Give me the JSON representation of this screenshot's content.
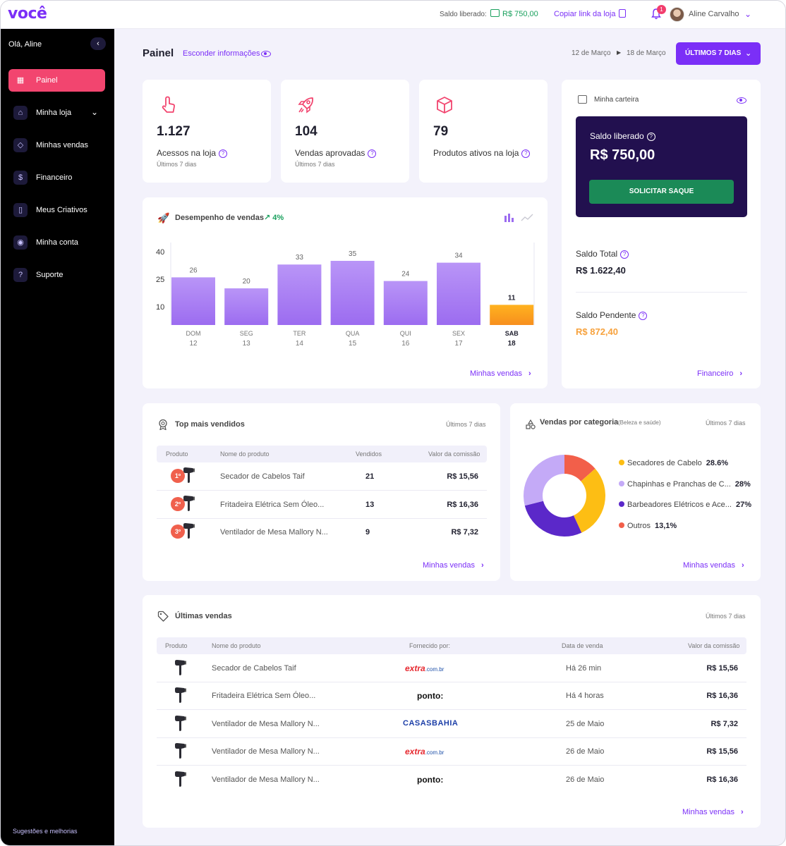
{
  "topbar": {
    "logo": "você",
    "saldo_label": "Saldo liberado:",
    "saldo_value": "R$ 750,00",
    "copy_link": "Copiar link da loja",
    "notification_count": "1",
    "user_name": "Aline Carvalho"
  },
  "sidebar": {
    "greeting": "Olá, Aline",
    "items": [
      {
        "label": "Painel",
        "icon": "dashboard-icon",
        "glyph": "▦",
        "active": true
      },
      {
        "label": "Minha loja",
        "icon": "store-icon",
        "glyph": "⌂",
        "active": false
      },
      {
        "label": "Minhas vendas",
        "icon": "tag-icon",
        "glyph": "◇",
        "active": false
      },
      {
        "label": "Financeiro",
        "icon": "dollar-icon",
        "glyph": "$",
        "active": false
      },
      {
        "label": "Meus Criativos",
        "icon": "phone-icon",
        "glyph": "▯",
        "active": false
      },
      {
        "label": "Minha conta",
        "icon": "user-icon",
        "glyph": "◉",
        "active": false
      },
      {
        "label": "Suporte",
        "icon": "help-icon",
        "glyph": "?",
        "active": false
      }
    ],
    "footer": "Sugestões e melhorias"
  },
  "header": {
    "title": "Painel",
    "hide_info": "Esconder informações",
    "date_from": "12 de Março",
    "date_to": "18 de Março",
    "range_button": "ÚLTIMOS 7 DIAS"
  },
  "stats": [
    {
      "value": "1.127",
      "label": "Acessos na loja",
      "sub": "Últimos 7 dias",
      "icon": "touch-icon"
    },
    {
      "value": "104",
      "label": "Vendas aprovadas",
      "sub": "Últimos 7 dias",
      "icon": "rocket-icon"
    },
    {
      "value": "79",
      "label": "Produtos ativos na loja",
      "sub": "",
      "icon": "box-icon"
    }
  ],
  "wallet": {
    "title": "Minha carteira",
    "released_label": "Saldo liberado",
    "released_value": "R$ 750,00",
    "withdraw_button": "SOLICITAR SAQUE",
    "total_label": "Saldo Total",
    "total_value": "R$ 1.622,40",
    "pending_label": "Saldo Pendente",
    "pending_value": "R$ 872,40",
    "link": "Financeiro"
  },
  "performance": {
    "title": "Desempenho de vendas",
    "trend": "4%",
    "link": "Minhas vendas"
  },
  "chart_data": {
    "type": "bar",
    "title": "Desempenho de vendas",
    "categories": [
      "DOM",
      "SEG",
      "TER",
      "QUA",
      "QUI",
      "SEX",
      "SAB"
    ],
    "days": [
      "12",
      "13",
      "14",
      "15",
      "16",
      "17",
      "18"
    ],
    "values": [
      26,
      20,
      33,
      35,
      24,
      34,
      11
    ],
    "highlight_index": 6,
    "yticks": [
      40,
      25,
      10
    ],
    "ylim": [
      0,
      45
    ],
    "colors": {
      "bar_top": "#b995f7",
      "bar_bottom": "#9c6cf0",
      "highlight_top": "#ffb21f",
      "highlight_bottom": "#f78f1e"
    }
  },
  "top_sellers": {
    "title": "Top mais vendidos",
    "period": "Últimos 7 dias",
    "columns": [
      "Produto",
      "Nome do produto",
      "Vendidos",
      "Valor da comissão"
    ],
    "rows": [
      {
        "rank": "1º",
        "name": "Secador de Cabelos Taif",
        "sold": "21",
        "commission": "R$ 15,56"
      },
      {
        "rank": "2º",
        "name": "Fritadeira Elétrica Sem Óleo...",
        "sold": "13",
        "commission": "R$ 16,36"
      },
      {
        "rank": "3º",
        "name": "Ventilador de Mesa Mallory N...",
        "sold": "9",
        "commission": "R$ 7,32"
      }
    ],
    "link": "Minhas vendas"
  },
  "categories": {
    "title": "Vendas por categoria",
    "subtitle": "(Beleza e saúde)",
    "period": "Últimos 7 dias",
    "link": "Minhas vendas",
    "donut": [
      {
        "label": "Secadores de Cabelo",
        "pct": "28.6%",
        "value": 28.6,
        "color": "#fdbe14"
      },
      {
        "label": "Chapinhas e Pranchas de C...",
        "pct": "28%",
        "value": 28,
        "color": "#c4aaf7"
      },
      {
        "label": "Barbeadores Elétricos e Ace...",
        "pct": "27%",
        "value": 27,
        "color": "#5b28c9"
      },
      {
        "label": "Outros",
        "pct": "13,1%",
        "value": 13.1,
        "color": "#f25f4a"
      }
    ]
  },
  "latest_sales": {
    "title": "Últimas vendas",
    "period": "Últimos 7 dias",
    "columns": [
      "Produto",
      "Nome do produto",
      "Fornecido por:",
      "Data de venda",
      "Valor da comissão"
    ],
    "rows": [
      {
        "name": "Secador de Cabelos Taif",
        "supplier": "extra",
        "date": "Há 26 min",
        "commission": "R$ 15,56"
      },
      {
        "name": "Fritadeira Elétrica Sem Óleo...",
        "supplier": "ponto",
        "date": "Há 4 horas",
        "commission": "R$ 16,36"
      },
      {
        "name": "Ventilador de Mesa Mallory N...",
        "supplier": "casasbahia",
        "date": "25 de Maio",
        "commission": "R$ 7,32"
      },
      {
        "name": "Ventilador de Mesa Mallory N...",
        "supplier": "extra",
        "date": "26 de Maio",
        "commission": "R$ 15,56"
      },
      {
        "name": "Ventilador de Mesa Mallory N...",
        "supplier": "ponto",
        "date": "26 de Maio",
        "commission": "R$ 16,36"
      }
    ],
    "brands": {
      "extra": "extra",
      "extra_domain": ".com.br",
      "ponto": "ponto:",
      "casasbahia": "CASASBAHIA"
    },
    "link": "Minhas vendas"
  }
}
